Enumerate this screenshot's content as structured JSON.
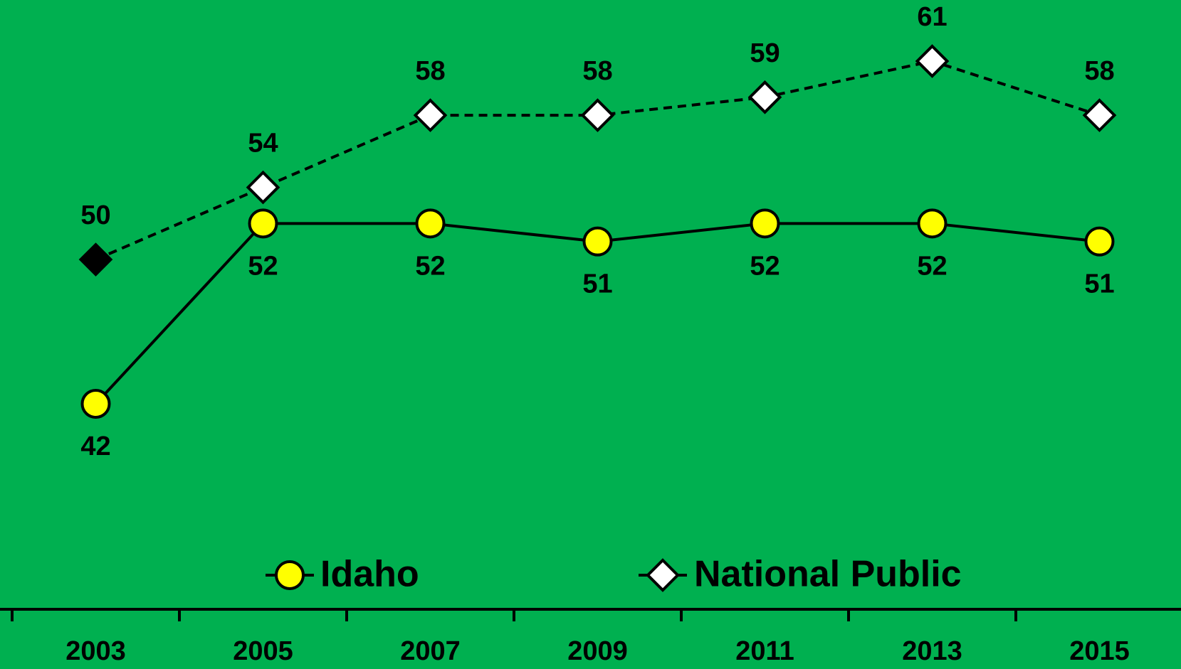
{
  "chart_data": {
    "type": "line",
    "categories": [
      "2003",
      "2005",
      "2007",
      "2009",
      "2011",
      "2013",
      "2015"
    ],
    "series": [
      {
        "name": "Idaho",
        "color": "#000000",
        "marker": "circle",
        "marker_color": "#ffff00",
        "dashed": false,
        "values": [
          42,
          52,
          52,
          51,
          52,
          52,
          51
        ]
      },
      {
        "name": "National Public",
        "color": "#000000",
        "marker": "diamond",
        "marker_color": "#ffffff",
        "dashed": true,
        "marker_colors": [
          "#000000",
          "#ffffff",
          "#ffffff",
          "#ffffff",
          "#ffffff",
          "#ffffff",
          "#ffffff"
        ],
        "values": [
          50,
          54,
          58,
          58,
          59,
          61,
          58
        ]
      }
    ],
    "background": "#00b050"
  }
}
